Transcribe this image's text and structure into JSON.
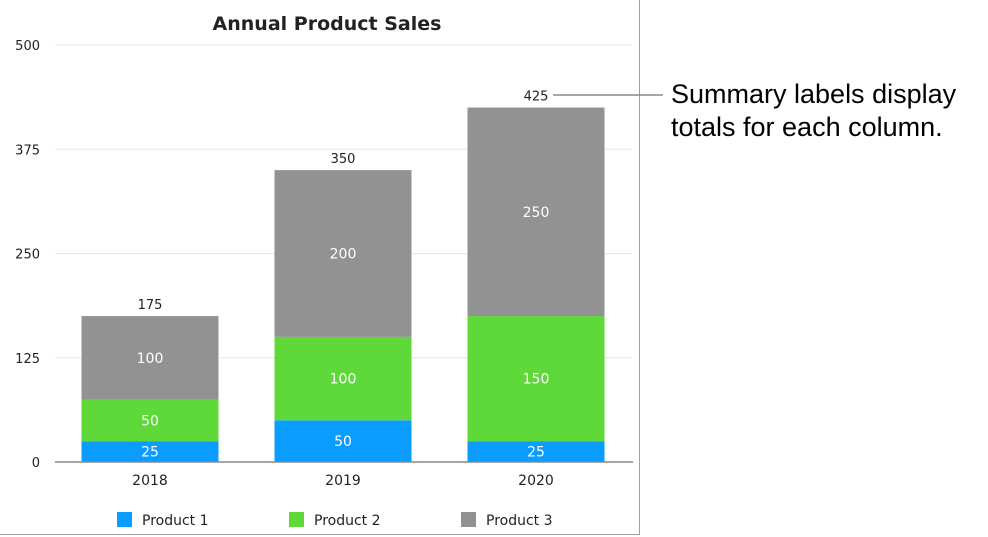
{
  "chart_data": {
    "type": "bar",
    "stacked": true,
    "title": "Annual Product Sales",
    "categories": [
      "2018",
      "2019",
      "2020"
    ],
    "series": [
      {
        "name": "Product 1",
        "values": [
          25,
          50,
          25
        ],
        "color": "#0a9cff"
      },
      {
        "name": "Product 2",
        "values": [
          50,
          100,
          150
        ],
        "color": "#5fd93a"
      },
      {
        "name": "Product 3",
        "values": [
          100,
          200,
          250
        ],
        "color": "#929292"
      }
    ],
    "totals": [
      175,
      350,
      425
    ],
    "ylim": [
      0,
      500
    ],
    "yticks": [
      0,
      125,
      250,
      375,
      500
    ],
    "grid": true,
    "legend": "bottom"
  },
  "callout": {
    "line1": "Summary labels display",
    "line2": "totals for each column."
  }
}
